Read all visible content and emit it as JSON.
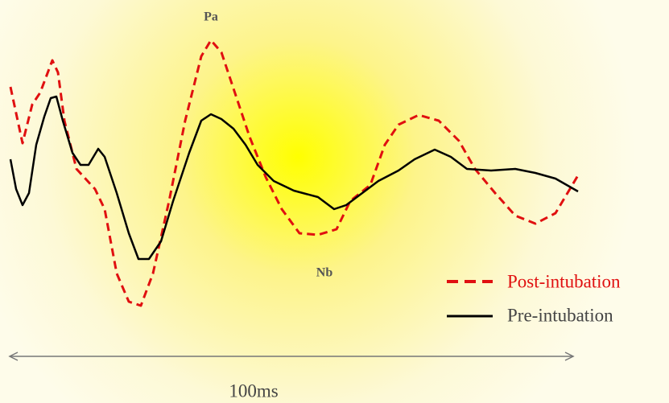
{
  "peaks": {
    "pa": "Pa",
    "nb": "Nb"
  },
  "legend": {
    "post": "Post-intubation",
    "pre": "Pre-intubation"
  },
  "scale": "100ms"
}
